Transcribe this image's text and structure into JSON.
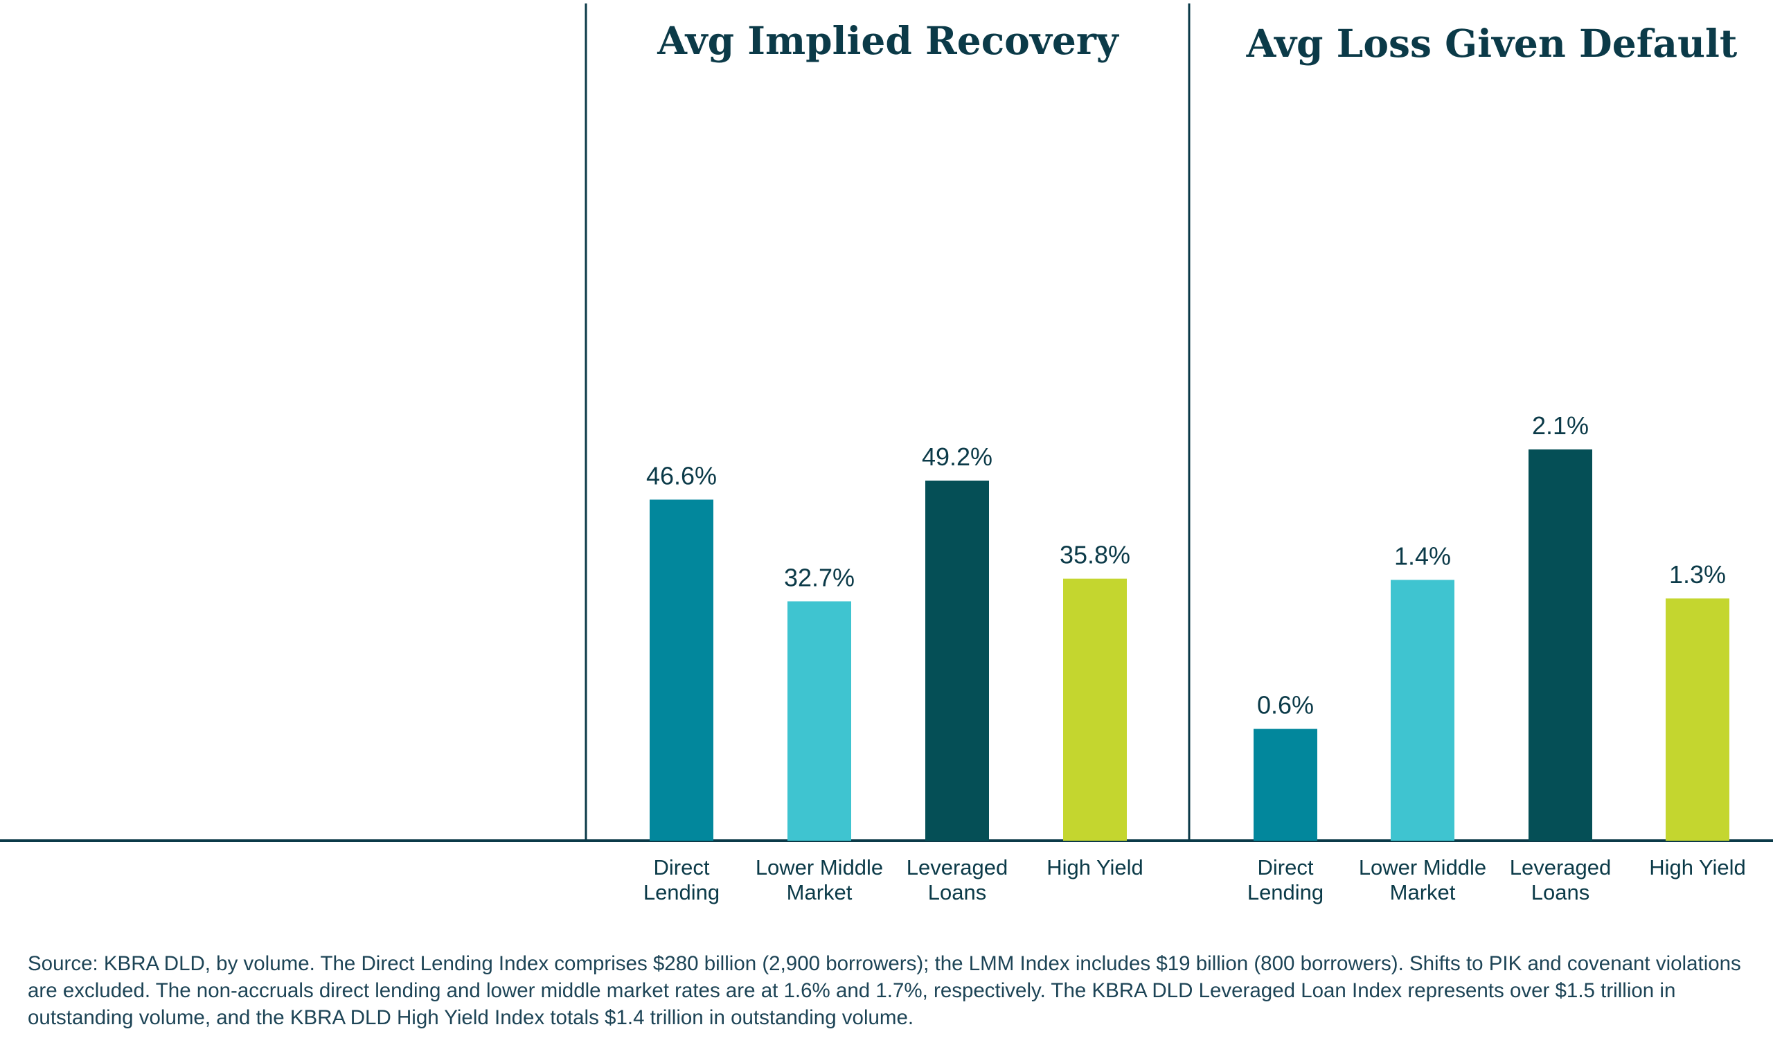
{
  "chart_data": [
    {
      "type": "bar",
      "title": "Avg Implied Recovery",
      "categories": [
        [
          "Direct",
          "Lending"
        ],
        [
          "Lower Middle",
          "Market"
        ],
        [
          "Leveraged",
          "Loans"
        ],
        [
          "High Yield"
        ]
      ],
      "values": [
        46.6,
        32.7,
        49.2,
        35.8
      ],
      "value_labels": [
        "46.6%",
        "32.7%",
        "49.2%",
        "35.8%"
      ],
      "colors": [
        "#02879c",
        "#3fc4d0",
        "#054f56",
        "#c4d62f"
      ],
      "ylim": [
        0,
        60
      ],
      "grid": false,
      "legend": "none"
    },
    {
      "type": "bar",
      "title": "Avg Loss Given Default",
      "categories": [
        [
          "Direct",
          "Lending"
        ],
        [
          "Lower Middle",
          "Market"
        ],
        [
          "Leveraged",
          "Loans"
        ],
        [
          "High Yield"
        ]
      ],
      "values": [
        0.6,
        1.4,
        2.1,
        1.3
      ],
      "value_labels": [
        "0.6%",
        "1.4%",
        "2.1%",
        "1.3%"
      ],
      "colors": [
        "#02879c",
        "#3fc4d0",
        "#054f56",
        "#c4d62f"
      ],
      "ylim": [
        0,
        2.5
      ],
      "grid": false,
      "legend": "none"
    }
  ],
  "footnote": "Source: KBRA DLD, by volume. The Direct Lending Index comprises $280 billion (2,900 borrowers); the LMM Index includes $19 billion (800 borrowers). Shifts to PIK and covenant violations are excluded. The non-accruals direct lending and lower middle market rates are at 1.6% and 1.7%, respectively. The KBRA DLD Leveraged Loan Index represents over $1.5 trillion in outstanding volume, and the KBRA DLD High Yield Index totals $1.4 trillion in outstanding volume."
}
